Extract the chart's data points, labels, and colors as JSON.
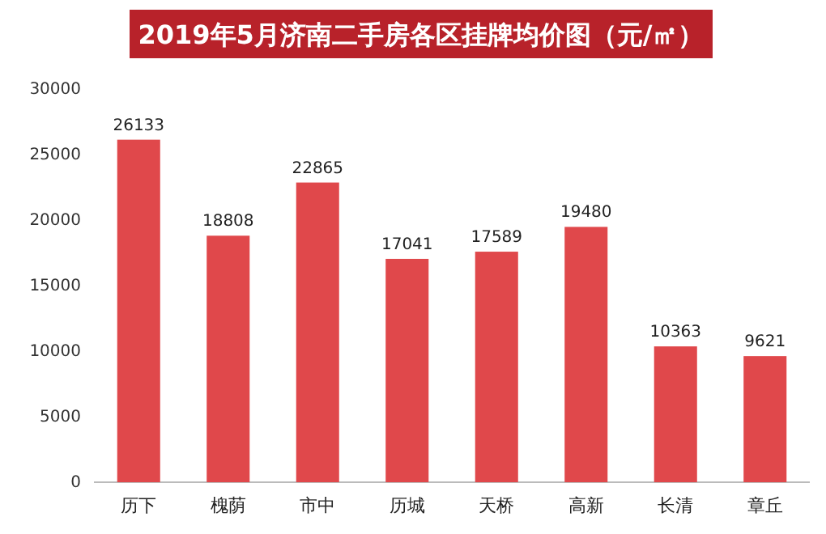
{
  "chart_data": {
    "type": "bar",
    "title": "2019年5月济南二手房各区挂牌均价图（元/㎡）",
    "categories": [
      "历下",
      "槐荫",
      "市中",
      "历城",
      "天桥",
      "高新",
      "长清",
      "章丘"
    ],
    "values": [
      26133,
      18808,
      22865,
      17041,
      17589,
      19480,
      10363,
      9621
    ],
    "color": "#e0484b",
    "ylim": [
      0,
      30000
    ],
    "yticks": [
      0,
      5000,
      10000,
      15000,
      20000,
      25000,
      30000
    ],
    "data_labels": true,
    "grid": false
  }
}
